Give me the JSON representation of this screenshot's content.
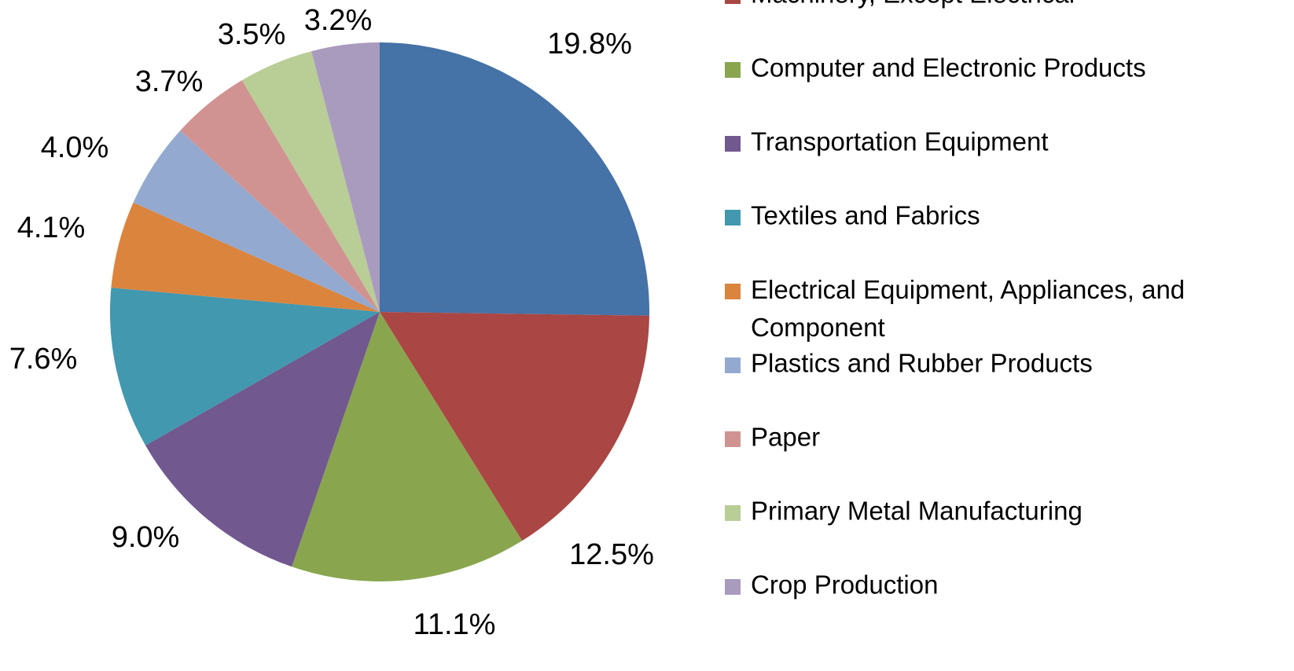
{
  "chart_data": {
    "type": "pie",
    "categories": [
      null,
      "Machinery, Except Electrical",
      "Computer and Electronic Products",
      "Transportation Equipment",
      "Textiles and Fabrics",
      "Electrical Equipment, Appliances, and Component",
      "Plastics and Rubber Products",
      "Paper",
      "Primary Metal Manufacturing",
      "Crop Production"
    ],
    "values": [
      19.8,
      12.5,
      11.1,
      9.0,
      7.6,
      4.1,
      4.0,
      3.7,
      3.5,
      3.2
    ],
    "value_labels": [
      "19.8%",
      "12.5%",
      "11.1%",
      "9.0%",
      "7.6%",
      "4.1%",
      "4.0%",
      "3.7%",
      "3.5%",
      "3.2%"
    ],
    "colors": [
      "#4572a7",
      "#aa4643",
      "#89a54e",
      "#71588f",
      "#4198af",
      "#db843d",
      "#93a9cf",
      "#d19392",
      "#b9cd96",
      "#a99bbd"
    ],
    "legend": "right"
  }
}
